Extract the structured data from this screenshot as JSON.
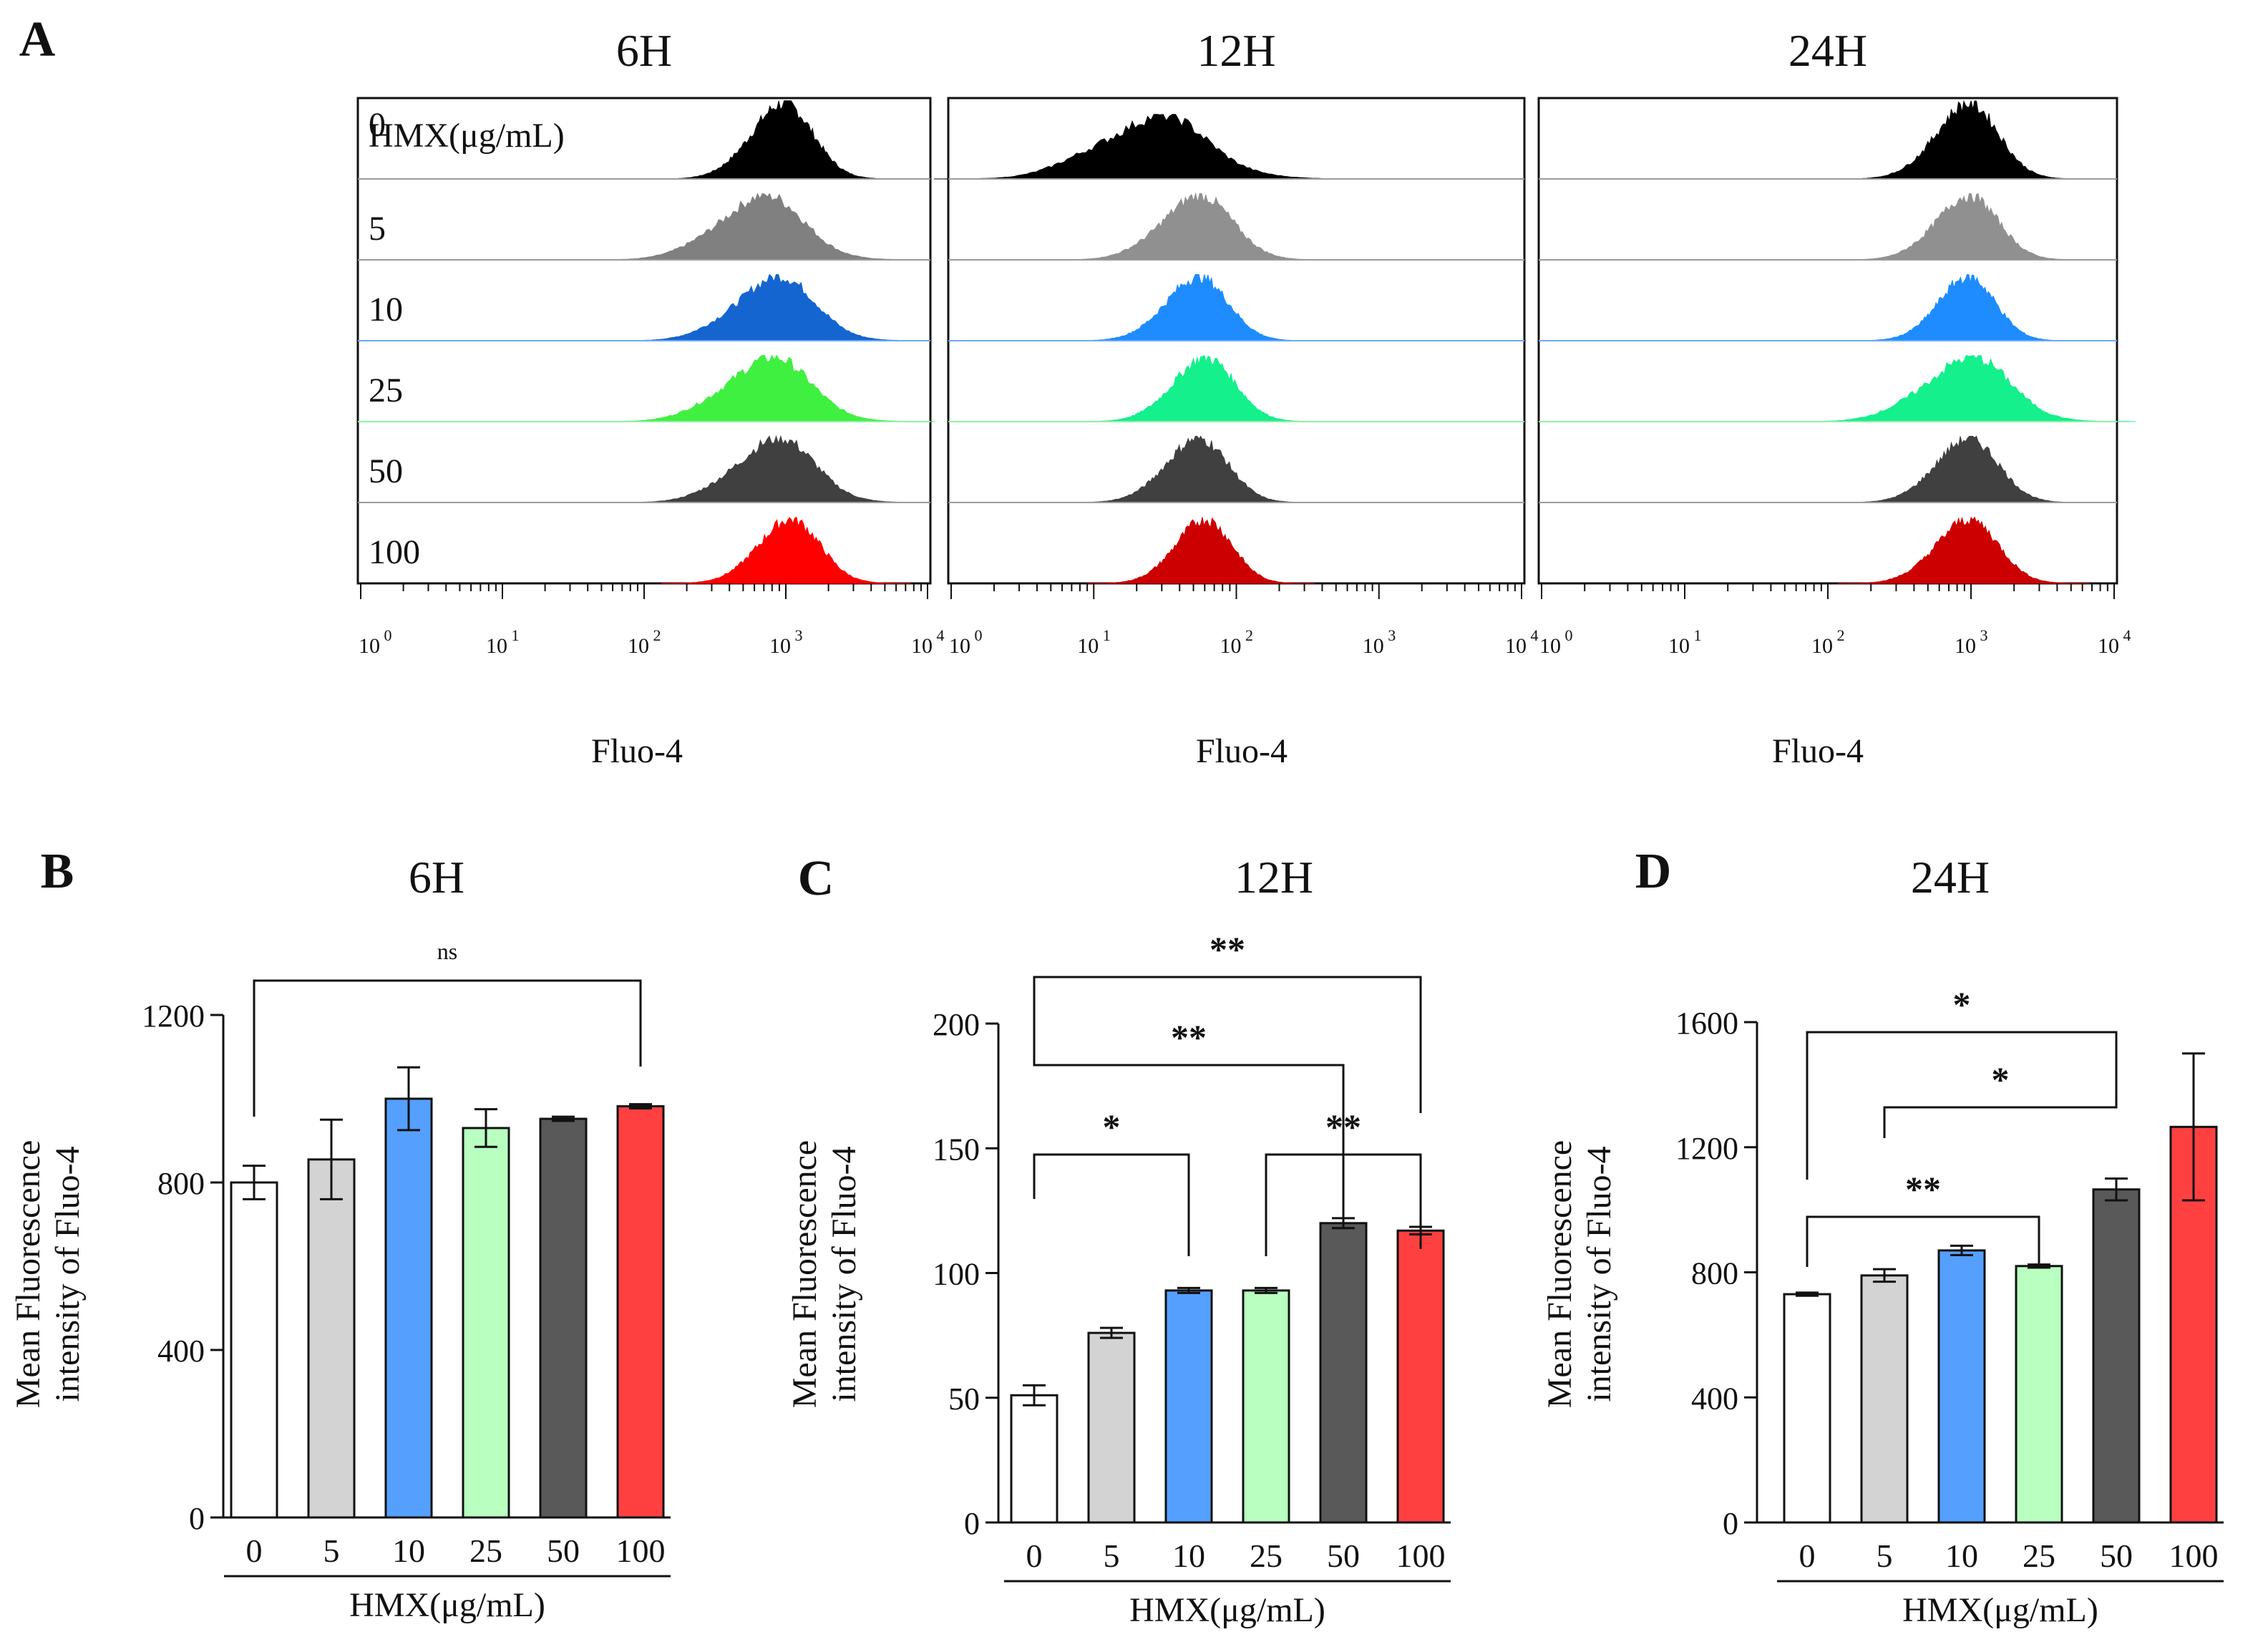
{
  "panel_letters": [
    "A",
    "B",
    "C",
    "D"
  ],
  "hist_axis": {
    "xlabel": "Fluo-4",
    "legend_title": "HMX(μg/mL)",
    "tick_base": "10",
    "tick_exponents": [
      "0",
      "1",
      "2",
      "3",
      "4"
    ],
    "row_labels": [
      "0",
      "5",
      "10",
      "25",
      "50",
      "100"
    ]
  },
  "hist_colors": {
    "6H": [
      "#000000",
      "#808080",
      "#1565d0",
      "#40f040",
      "#404040",
      "#ff0000"
    ],
    "12H": [
      "#000000",
      "#909090",
      "#1e8cff",
      "#14f08c",
      "#404040",
      "#cc0000"
    ],
    "24H": [
      "#000000",
      "#909090",
      "#1e8cff",
      "#14f08c",
      "#404040",
      "#cc0000"
    ]
  },
  "bar_colors": [
    "#ffffff",
    "#d3d3d3",
    "#55a0ff",
    "#b8ffc0",
    "#595959",
    "#ff4040"
  ],
  "chart_data": [
    {
      "panel": "A",
      "type": "area",
      "series_note": "flow cytometry histograms, Fluo-4 fluorescence, log10 scale 10^0 to 10^4",
      "panels": [
        {
          "title": "6H",
          "peaks_log10": [
            2.95,
            2.8,
            2.9,
            2.85,
            2.9,
            3.0
          ],
          "spreads": [
            0.22,
            0.3,
            0.28,
            0.3,
            0.28,
            0.22
          ]
        },
        {
          "title": "12H",
          "peaks_log10": [
            1.4,
            1.7,
            1.7,
            1.75,
            1.7,
            1.75
          ],
          "spreads": [
            0.38,
            0.25,
            0.22,
            0.22,
            0.22,
            0.2
          ]
        },
        {
          "title": "24H",
          "peaks_log10": [
            2.95,
            2.95,
            2.95,
            2.95,
            2.95,
            2.95
          ],
          "spreads": [
            0.22,
            0.22,
            0.2,
            0.3,
            0.22,
            0.22
          ]
        }
      ]
    },
    {
      "panel": "B",
      "type": "bar",
      "title": "6H",
      "ylabel": [
        "Mean Fluorescence",
        "intensity of Fluo-4"
      ],
      "xlabel": "HMX(μg/mL)",
      "categories": [
        "0",
        "5",
        "10",
        "25",
        "50",
        "100"
      ],
      "values": [
        800,
        855,
        1000,
        930,
        952,
        982
      ],
      "errors": [
        40,
        95,
        75,
        45,
        5,
        5
      ],
      "ylim": [
        0,
        1200
      ],
      "yticks": [
        "0",
        "400",
        "800",
        "1200"
      ],
      "sig": [
        {
          "from": 0,
          "to": 5,
          "label": "ns"
        }
      ]
    },
    {
      "panel": "C",
      "type": "bar",
      "title": "12H",
      "ylabel": [
        "Mean Fluorescence",
        "intensity of Fluo-4"
      ],
      "xlabel": "HMX(μg/mL)",
      "categories": [
        "0",
        "5",
        "10",
        "25",
        "50",
        "100"
      ],
      "values": [
        51,
        76,
        93,
        93,
        120,
        117
      ],
      "errors": [
        4,
        2,
        1,
        1,
        2,
        1.5
      ],
      "ylim": [
        0,
        200
      ],
      "yticks": [
        "0",
        "50",
        "100",
        "150",
        "200"
      ],
      "sig": [
        {
          "from": 0,
          "to": 5,
          "label": "**"
        },
        {
          "from": 0,
          "to": 4,
          "label": "**"
        },
        {
          "from": 0,
          "to": 2,
          "label": "*"
        },
        {
          "from": 3,
          "to": 5,
          "label": "**"
        }
      ]
    },
    {
      "panel": "D",
      "type": "bar",
      "title": "24H",
      "ylabel": [
        "Mean Fluorescence",
        "intensity of Fluo-4"
      ],
      "xlabel": "HMX(μg/mL)",
      "categories": [
        "0",
        "5",
        "10",
        "25",
        "50",
        "100"
      ],
      "values": [
        730,
        790,
        870,
        820,
        1065,
        1265
      ],
      "errors": [
        5,
        20,
        15,
        5,
        35,
        235
      ],
      "ylim": [
        0,
        1600
      ],
      "yticks": [
        "0",
        "400",
        "800",
        "1200",
        "1600"
      ],
      "sig": [
        {
          "from": 0,
          "to": 4,
          "label": "*"
        },
        {
          "from": 1,
          "to": 4,
          "label": "*"
        },
        {
          "from": 0,
          "to": 3,
          "label": "**"
        }
      ]
    }
  ]
}
